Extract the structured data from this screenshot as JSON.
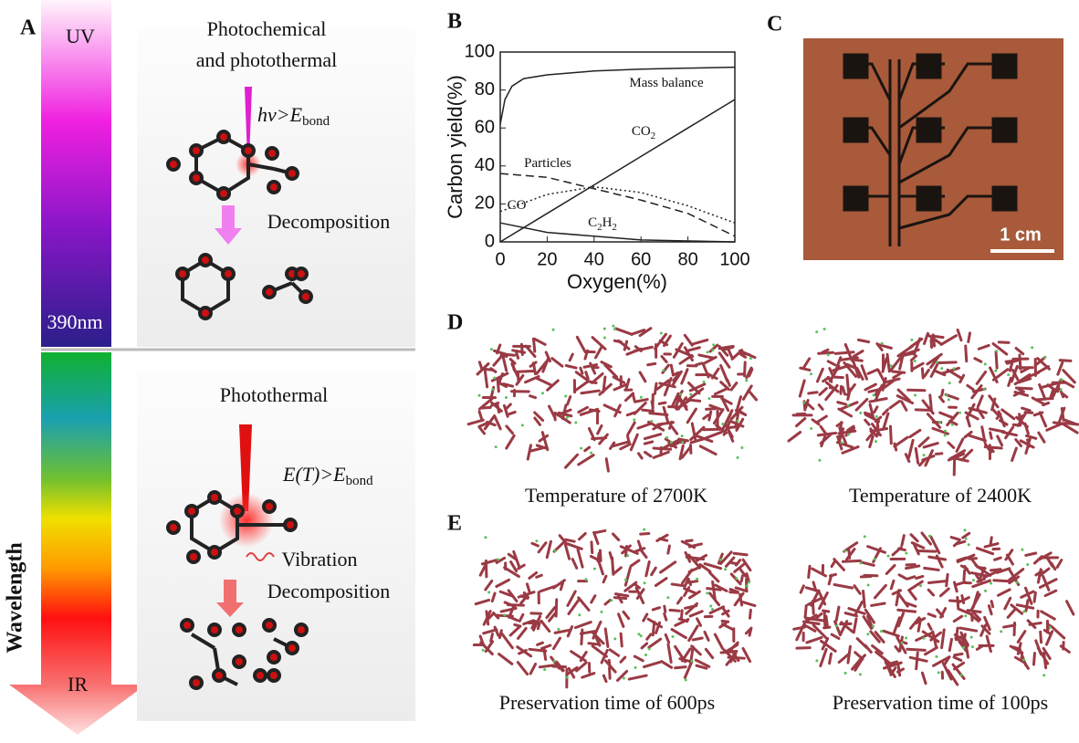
{
  "panel_a": {
    "label": "A",
    "uv": "UV",
    "boundary": "390nm",
    "ir": "IR",
    "axis_label": "Wavelength",
    "top": {
      "title_lines": [
        "Photochemical",
        "and photothermal"
      ],
      "condition": [
        "hν>E",
        "bond"
      ],
      "step": "Decomposition"
    },
    "bottom": {
      "title": "Photothermal",
      "condition": [
        "E(T)>E",
        "bond"
      ],
      "vibration": "Vibration",
      "step": "Decomposition"
    }
  },
  "chart_data": {
    "type": "line",
    "label": "B",
    "x_label": "Oxygen(%)",
    "y_label": "Carbon yield(%)",
    "xlim": [
      0,
      100
    ],
    "ylim": [
      0,
      100
    ],
    "xticks": [
      0,
      20,
      40,
      60,
      80,
      100
    ],
    "yticks": [
      0,
      20,
      40,
      60,
      80,
      100
    ],
    "series": [
      {
        "label": [
          "Mass balance"
        ],
        "color": "#222222",
        "style": "solid",
        "x": [
          0,
          2,
          5,
          10,
          20,
          40,
          60,
          80,
          100
        ],
        "values": [
          62,
          75,
          82,
          86,
          88,
          90,
          91,
          91.5,
          92
        ]
      },
      {
        "label": [
          "CO",
          "2"
        ],
        "color": "#222222",
        "style": "solid",
        "x": [
          0,
          20,
          40,
          60,
          80,
          100
        ],
        "values": [
          0,
          15,
          30,
          45,
          60,
          75
        ]
      },
      {
        "label": [
          "Particles"
        ],
        "color": "#222222",
        "style": "dashed",
        "x": [
          0,
          20,
          40,
          60,
          80,
          100
        ],
        "values": [
          36,
          34,
          28,
          22,
          15,
          3
        ]
      },
      {
        "label": [
          "CO"
        ],
        "color": "#222222",
        "style": "dotted",
        "x": [
          0,
          20,
          40,
          60,
          80,
          100
        ],
        "values": [
          16,
          25,
          29,
          26,
          19,
          10
        ]
      },
      {
        "label": [
          "C",
          "2",
          "H",
          "2"
        ],
        "color": "#222222",
        "style": "solid",
        "x": [
          0,
          20,
          40,
          60,
          80,
          100
        ],
        "values": [
          10,
          5,
          3,
          1,
          0.5,
          0
        ]
      }
    ]
  },
  "panel_c": {
    "label": "C",
    "scale_bar": "1 cm"
  },
  "panel_d": {
    "label": "D",
    "captions": [
      "Temperature of 2700K",
      "Temperature of 2400K"
    ]
  },
  "panel_e": {
    "label": "E",
    "captions": [
      "Preservation time of 600ps",
      "Preservation time of 100ps"
    ]
  }
}
